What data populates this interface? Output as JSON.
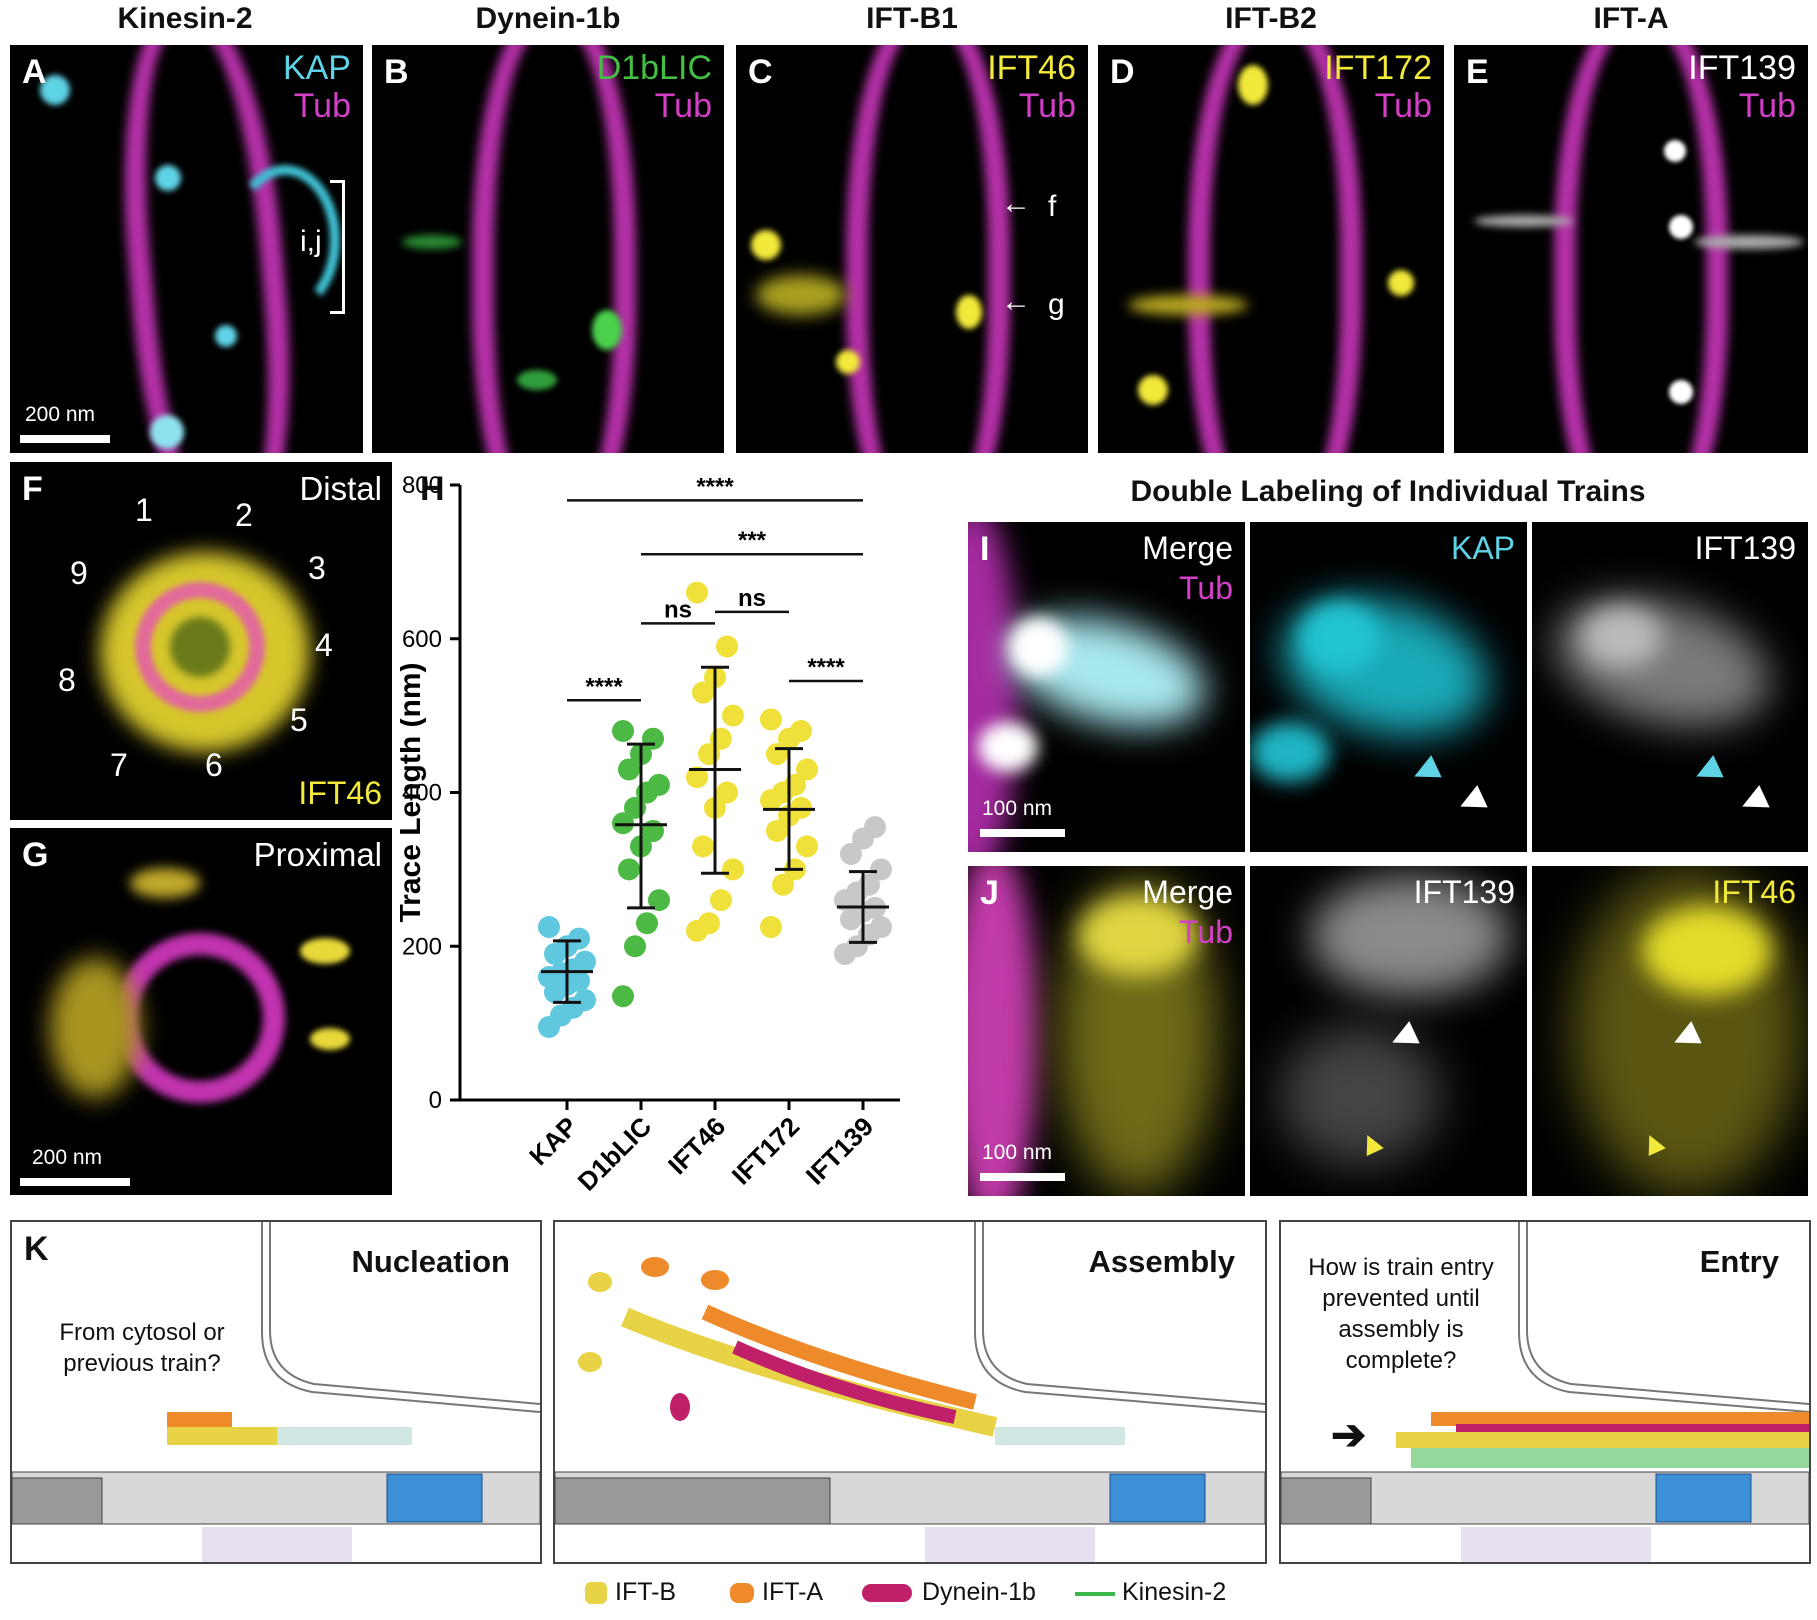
{
  "top_row": {
    "columns": [
      {
        "title": "Kinesin-2",
        "letter": "A",
        "ch1": "KAP",
        "ch2": "Tub",
        "ch1_color": "#5fd3e6"
      },
      {
        "title": "Dynein-1b",
        "letter": "B",
        "ch1": "D1bLIC",
        "ch2": "Tub",
        "ch1_color": "#43c043"
      },
      {
        "title": "IFT-B1",
        "letter": "C",
        "ch1": "IFT46",
        "ch2": "Tub",
        "ch1_color": "#f2e93a"
      },
      {
        "title": "IFT-B2",
        "letter": "D",
        "ch1": "IFT172",
        "ch2": "Tub",
        "ch1_color": "#f2e93a"
      },
      {
        "title": "IFT-A",
        "letter": "E",
        "ch1": "IFT139",
        "ch2": "Tub",
        "ch1_color": "#ffffff"
      }
    ],
    "panel_a_bracket": "i,j",
    "panel_a_scale": "200 nm",
    "panel_c_arrows": [
      "f",
      "g"
    ],
    "tub_color": "#d43fc8"
  },
  "panel_f": {
    "letter": "F",
    "label": "Distal",
    "channel": "IFT46",
    "numbers": [
      "1",
      "2",
      "3",
      "4",
      "5",
      "6",
      "7",
      "8",
      "9"
    ]
  },
  "panel_g": {
    "letter": "G",
    "label": "Proximal",
    "scale": "200 nm"
  },
  "panel_h": {
    "letter": "H"
  },
  "chart_data": {
    "type": "scatter",
    "ylabel": "Trace Length (nm)",
    "ylim": [
      0,
      800
    ],
    "yticks": [
      0,
      200,
      400,
      600,
      800
    ],
    "categories": [
      "KAP",
      "D1bLIC",
      "IFT46",
      "IFT172",
      "IFT139"
    ],
    "colors": [
      "#5fc8de",
      "#4cb944",
      "#f0e13a",
      "#f0e13a",
      "#c8c8c8"
    ],
    "series": [
      {
        "values": [
          95,
          110,
          120,
          130,
          140,
          150,
          155,
          160,
          165,
          170,
          180,
          190,
          200,
          210,
          225
        ],
        "mean": 167,
        "sd_low": 127,
        "sd_high": 207
      },
      {
        "values": [
          135,
          200,
          230,
          260,
          300,
          330,
          350,
          360,
          380,
          400,
          410,
          430,
          450,
          470,
          480
        ],
        "mean": 358,
        "sd_low": 250,
        "sd_high": 463
      },
      {
        "values": [
          220,
          230,
          260,
          300,
          330,
          380,
          400,
          420,
          450,
          470,
          500,
          530,
          550,
          590,
          660
        ],
        "mean": 430,
        "sd_low": 295,
        "sd_high": 563
      },
      {
        "values": [
          225,
          280,
          300,
          330,
          350,
          370,
          380,
          390,
          400,
          410,
          430,
          450,
          470,
          480,
          495
        ],
        "mean": 378,
        "sd_low": 300,
        "sd_high": 457
      },
      {
        "values": [
          190,
          200,
          215,
          225,
          235,
          245,
          250,
          260,
          270,
          280,
          300,
          320,
          340,
          355
        ],
        "mean": 251,
        "sd_low": 205,
        "sd_high": 297
      }
    ],
    "significance": [
      {
        "from": "KAP",
        "to": "IFT139",
        "label": "****",
        "y": 780
      },
      {
        "from": "D1bLIC",
        "to": "IFT139",
        "label": "***",
        "y": 710
      },
      {
        "from": "D1bLIC",
        "to": "IFT46",
        "label": "ns",
        "y": 620
      },
      {
        "from": "IFT46",
        "to": "IFT172",
        "label": "ns",
        "y": 635
      },
      {
        "from": "KAP",
        "to": "D1bLIC",
        "label": "****",
        "y": 520
      },
      {
        "from": "IFT172",
        "to": "IFT139",
        "label": "****",
        "y": 545
      }
    ]
  },
  "double_labeling": {
    "title": "Double Labeling of Individual Trains",
    "row_i": {
      "letter": "I",
      "panels": [
        "Merge",
        "KAP",
        "IFT139"
      ],
      "sub": "Tub",
      "scale": "100 nm"
    },
    "row_j": {
      "letter": "J",
      "panels": [
        "Merge",
        "IFT139",
        "IFT46"
      ],
      "sub": "Tub",
      "scale": "100 nm"
    }
  },
  "panel_k": {
    "letter": "K",
    "nucleation": {
      "title": "Nucleation",
      "question": "From cytosol or previous train?"
    },
    "assembly": {
      "title": "Assembly"
    },
    "entry": {
      "title": "Entry",
      "question": "How is train entry prevented until assembly is complete?",
      "arrow": "➔"
    }
  },
  "legend": [
    {
      "label": "IFT-B",
      "color": "#e8d245"
    },
    {
      "label": "IFT-A",
      "color": "#ee8a2a"
    },
    {
      "label": "Dynein-1b",
      "color": "#c0206a"
    },
    {
      "label": "Kinesin-2",
      "color": "#3cb84a"
    }
  ]
}
